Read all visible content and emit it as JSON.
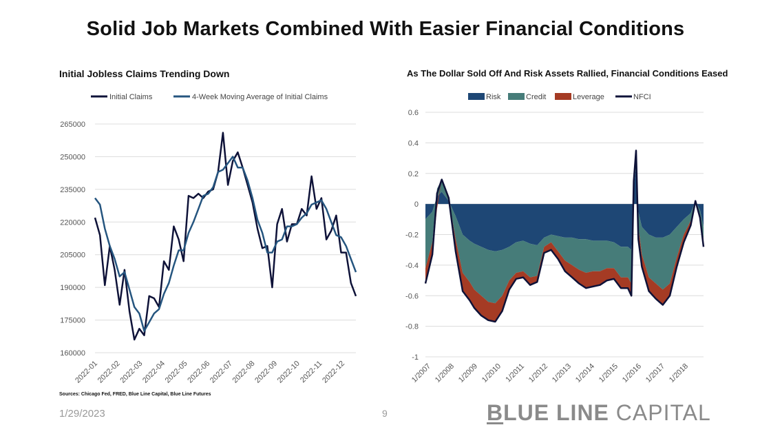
{
  "page": {
    "title": "Solid Job Markets Combined With Easier Financial Conditions",
    "sources": "Sources: Chicago Fed, FRED, Blue Line Capital, Blue Line Futures",
    "date": "1/29/2023",
    "page_number": "9",
    "logo": {
      "part1": "B",
      "part2": "LUE LINE",
      "part3": " CAPITAL"
    }
  },
  "chart_data": [
    {
      "type": "line",
      "title": "Initial Jobless Claims Trending Down",
      "legend_position": "top",
      "grid": true,
      "ylim": [
        160000,
        265000
      ],
      "yticks": [
        160000,
        175000,
        190000,
        205000,
        220000,
        235000,
        250000,
        265000
      ],
      "ytick_labels": [
        "160000",
        "175000",
        "190000",
        "205000",
        "220000",
        "235000",
        "250000",
        "265000"
      ],
      "xtick_labels": [
        "2022-01",
        "2022-02",
        "2022-03",
        "2022-04",
        "2022-05",
        "2022-06",
        "2022-07",
        "2022-08",
        "2022-09",
        "2022-10",
        "2022-11",
        "2022-12"
      ],
      "series": [
        {
          "name": "Initial Claims",
          "color": "#0e1238",
          "values": [
            222000,
            214000,
            191000,
            209000,
            198000,
            182000,
            198000,
            179000,
            166000,
            171000,
            168000,
            186000,
            185000,
            181000,
            202000,
            198000,
            218000,
            212000,
            202000,
            232000,
            231000,
            233000,
            231000,
            234000,
            235000,
            243000,
            261000,
            237000,
            248000,
            252000,
            245000,
            237000,
            229000,
            217000,
            208000,
            209000,
            190000,
            219000,
            226000,
            211000,
            219000,
            219000,
            226000,
            223000,
            241000,
            226000,
            231000,
            212000,
            216000,
            223000,
            206000,
            206000,
            192000,
            186000
          ]
        },
        {
          "name": "4-Week Moving Average of Initial Claims",
          "color": "#25557f",
          "values": [
            231000,
            228000,
            217000,
            209000,
            203000,
            195000,
            197000,
            189000,
            181000,
            178000,
            170000,
            174000,
            178000,
            180000,
            187000,
            192000,
            200000,
            207000,
            207000,
            215000,
            220000,
            226000,
            232000,
            233000,
            236000,
            243000,
            244000,
            247000,
            250000,
            245000,
            245000,
            239000,
            231000,
            221000,
            215000,
            206000,
            206000,
            211000,
            212000,
            218000,
            218000,
            219000,
            222000,
            224000,
            228000,
            229000,
            230000,
            226000,
            220000,
            214000,
            213000,
            209000,
            203000,
            197000
          ]
        }
      ]
    },
    {
      "type": "area",
      "title": "As The Dollar Sold Off And Risk Assets Rallied, Financial Conditions Eased",
      "legend_position": "top",
      "grid": true,
      "ylim": [
        -1,
        0.6
      ],
      "yticks": [
        -1,
        -0.8,
        -0.6,
        -0.4,
        -0.2,
        0,
        0.2,
        0.4,
        0.6
      ],
      "ytick_labels": [
        "-1",
        "-0.8",
        "-0.6",
        "-0.4",
        "-0.2",
        "0",
        "0.2",
        "0.4",
        "0.6"
      ],
      "xtick_labels": [
        "1/2007",
        "1/2008",
        "1/2009",
        "1/2010",
        "1/2011",
        "1/2012",
        "1/2013",
        "1/2014",
        "1/2015",
        "1/2016",
        "1/2017",
        "1/2018"
      ],
      "x": [
        2007.0,
        2007.3,
        2007.5,
        2007.7,
        2008.0,
        2008.3,
        2008.6,
        2008.9,
        2009.1,
        2009.4,
        2009.7,
        2010.0,
        2010.3,
        2010.6,
        2010.9,
        2011.2,
        2011.5,
        2011.8,
        2012.1,
        2012.4,
        2012.7,
        2013.0,
        2013.3,
        2013.6,
        2013.9,
        2014.2,
        2014.5,
        2014.8,
        2015.1,
        2015.4,
        2015.7,
        2015.85,
        2015.95,
        2016.05,
        2016.15,
        2016.3,
        2016.6,
        2016.9,
        2017.2,
        2017.5,
        2017.8,
        2018.1,
        2018.4,
        2018.6,
        2018.8,
        2018.95
      ],
      "series": [
        {
          "name": "Risk",
          "color": "#1e4775",
          "values": [
            -0.1,
            -0.05,
            0.05,
            0.08,
            0.02,
            -0.08,
            -0.2,
            -0.24,
            -0.26,
            -0.28,
            -0.3,
            -0.31,
            -0.3,
            -0.28,
            -0.25,
            -0.24,
            -0.26,
            -0.27,
            -0.22,
            -0.2,
            -0.21,
            -0.22,
            -0.22,
            -0.23,
            -0.23,
            -0.24,
            -0.24,
            -0.24,
            -0.25,
            -0.28,
            -0.28,
            -0.3,
            0.1,
            0.25,
            -0.05,
            -0.15,
            -0.2,
            -0.22,
            -0.22,
            -0.2,
            -0.15,
            -0.1,
            -0.06,
            0.02,
            -0.04,
            -0.15
          ]
        },
        {
          "name": "Credit",
          "color": "#467c79",
          "values": [
            -0.32,
            -0.2,
            0.05,
            0.08,
            0.02,
            -0.15,
            -0.25,
            -0.27,
            -0.3,
            -0.32,
            -0.34,
            -0.34,
            -0.3,
            -0.22,
            -0.2,
            -0.2,
            -0.22,
            -0.2,
            -0.06,
            -0.05,
            -0.1,
            -0.15,
            -0.18,
            -0.2,
            -0.22,
            -0.2,
            -0.2,
            -0.18,
            -0.17,
            -0.2,
            -0.2,
            -0.22,
            0.05,
            0.1,
            -0.1,
            -0.18,
            -0.28,
            -0.3,
            -0.34,
            -0.32,
            -0.2,
            -0.1,
            -0.05,
            0.0,
            -0.03,
            -0.08
          ]
        },
        {
          "name": "Leverage",
          "color": "#a53b24",
          "values": [
            -0.1,
            -0.08,
            -0.03,
            0.0,
            0.0,
            -0.08,
            -0.12,
            -0.12,
            -0.12,
            -0.13,
            -0.12,
            -0.12,
            -0.1,
            -0.06,
            -0.04,
            -0.04,
            -0.05,
            -0.04,
            -0.04,
            -0.05,
            -0.05,
            -0.07,
            -0.08,
            -0.09,
            -0.1,
            -0.1,
            -0.09,
            -0.08,
            -0.07,
            -0.07,
            -0.07,
            -0.08,
            0.0,
            0.0,
            -0.08,
            -0.08,
            -0.09,
            -0.1,
            -0.1,
            -0.08,
            -0.06,
            -0.05,
            -0.03,
            0.0,
            -0.02,
            -0.05
          ]
        },
        {
          "name": "NFCI",
          "color": "#0e1238",
          "values": [
            -0.52,
            -0.33,
            0.07,
            0.16,
            0.04,
            -0.31,
            -0.57,
            -0.63,
            -0.68,
            -0.73,
            -0.76,
            -0.77,
            -0.7,
            -0.56,
            -0.49,
            -0.48,
            -0.53,
            -0.51,
            -0.32,
            -0.3,
            -0.36,
            -0.44,
            -0.48,
            -0.52,
            -0.55,
            -0.54,
            -0.53,
            -0.5,
            -0.49,
            -0.55,
            -0.55,
            -0.6,
            0.15,
            0.35,
            -0.23,
            -0.41,
            -0.57,
            -0.62,
            -0.66,
            -0.6,
            -0.41,
            -0.25,
            -0.14,
            0.02,
            -0.09,
            -0.28
          ]
        }
      ]
    }
  ]
}
